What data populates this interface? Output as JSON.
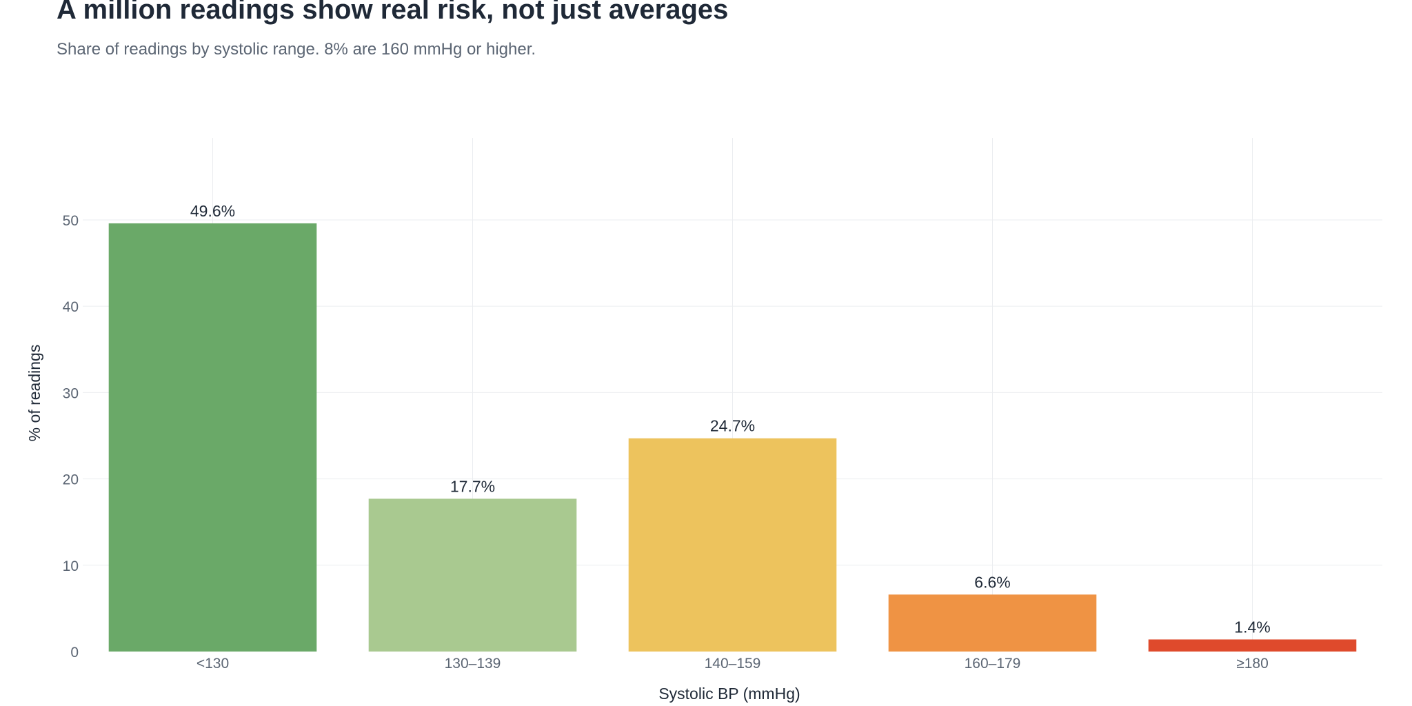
{
  "chart_data": {
    "type": "bar",
    "title": "A million readings show real risk, not just averages",
    "subtitle": "Share of readings by systolic range. 8% are 160 mmHg or higher.",
    "xlabel": "Systolic BP (mmHg)",
    "ylabel": "% of readings",
    "categories": [
      "<130",
      "130–139",
      "140–159",
      "160–179",
      "≥180"
    ],
    "values": [
      49.6,
      17.7,
      24.7,
      6.6,
      1.4
    ],
    "data_labels": [
      "49.6%",
      "17.7%",
      "24.7%",
      "6.6%",
      "1.4%"
    ],
    "colors": [
      "#6aa968",
      "#a9c990",
      "#edc35d",
      "#ef9344",
      "#df4a2c"
    ],
    "ylim": [
      0,
      59.5
    ],
    "yticks": [
      0,
      10,
      20,
      30,
      40,
      50
    ],
    "grid": true,
    "legend": "none"
  }
}
